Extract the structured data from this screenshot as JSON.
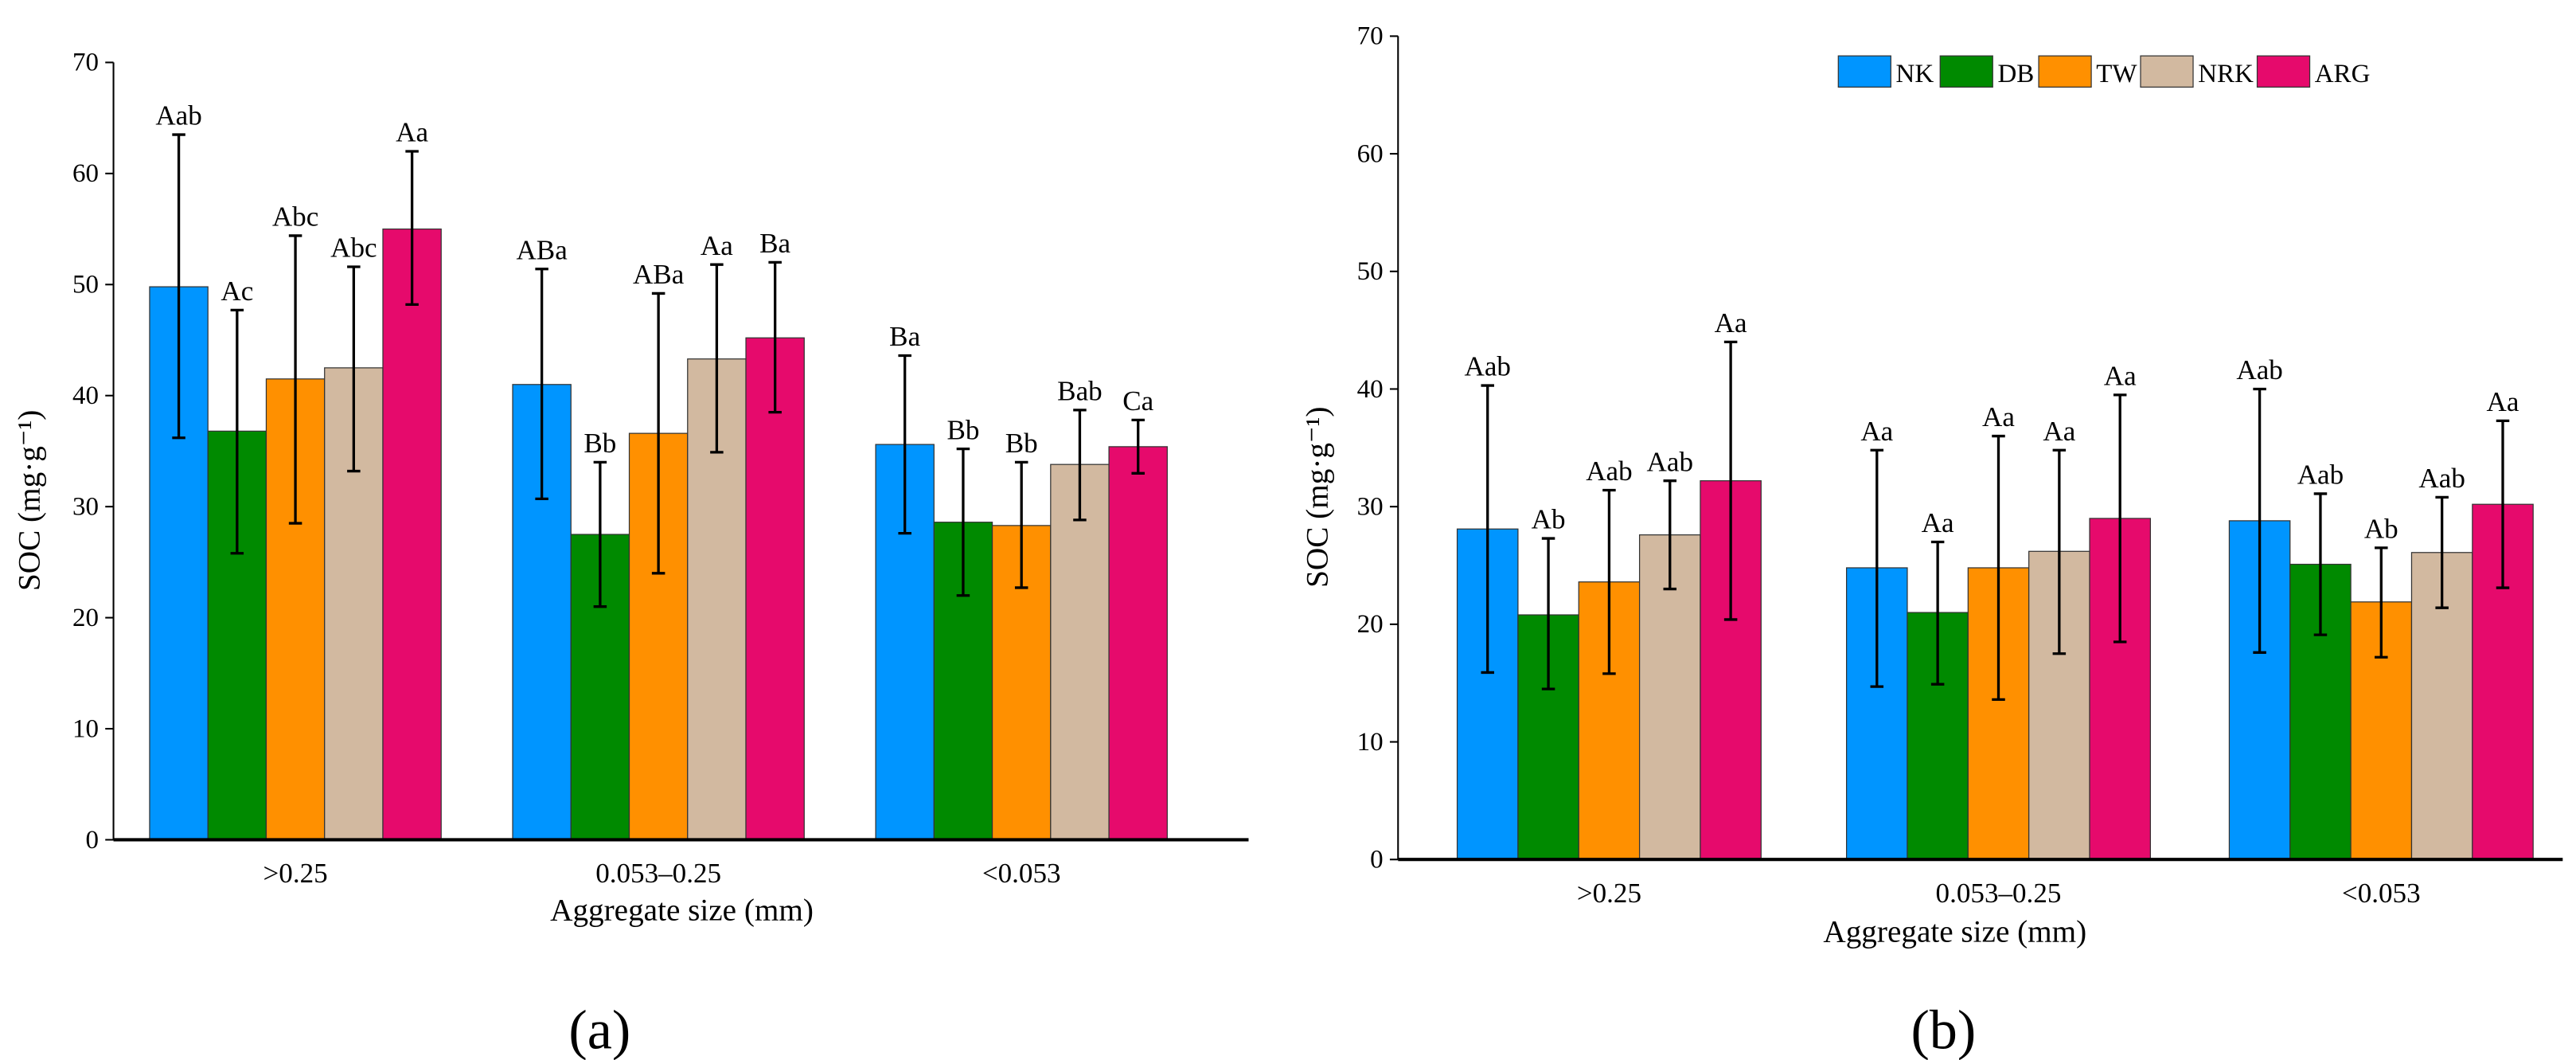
{
  "legend": [
    "NK",
    "DB",
    "TW",
    "NRK",
    "ARG"
  ],
  "colors": [
    "#0095FF",
    "#008A00",
    "#FF9000",
    "#D2B9A0",
    "#E60A6C"
  ],
  "chart_data": [
    {
      "type": "bar",
      "panel_label": "(a)",
      "xlabel": "Aggregate size (mm)",
      "ylabel": "SOC (mg·g⁻¹)",
      "ylim": [
        0,
        70
      ],
      "yticks": [
        "0",
        "10",
        "20",
        "30",
        "40",
        "50",
        "60",
        "70"
      ],
      "categories": [
        ">0.25",
        "0.053–0.25",
        "<0.053"
      ],
      "legend_shown": false,
      "series": [
        {
          "name": "NK",
          "values": [
            49.8,
            41.0,
            35.6
          ],
          "err_low": [
            36.2,
            30.7,
            27.6
          ],
          "err_high": [
            63.5,
            51.4,
            43.6
          ],
          "labels": [
            "Aab",
            "ABa",
            "Ba"
          ]
        },
        {
          "name": "DB",
          "values": [
            36.8,
            27.5,
            28.6
          ],
          "err_low": [
            25.8,
            21.0,
            22.0
          ],
          "err_high": [
            47.7,
            34.0,
            35.2
          ],
          "labels": [
            "Ac",
            "Bb",
            "Bb"
          ]
        },
        {
          "name": "TW",
          "values": [
            41.5,
            36.6,
            28.3
          ],
          "err_low": [
            28.5,
            24.0,
            22.7
          ],
          "err_high": [
            54.4,
            49.2,
            34.0
          ],
          "labels": [
            "Abc",
            "ABa",
            "Bb"
          ]
        },
        {
          "name": "NRK",
          "values": [
            42.5,
            43.3,
            33.8
          ],
          "err_low": [
            33.2,
            34.9,
            28.8
          ],
          "err_high": [
            51.6,
            51.8,
            38.7
          ],
          "labels": [
            "Abc",
            "Aa",
            "Bab"
          ]
        },
        {
          "name": "ARG",
          "values": [
            55.0,
            45.2,
            35.4
          ],
          "err_low": [
            48.2,
            38.5,
            33.0
          ],
          "err_high": [
            62.0,
            52.0,
            37.8
          ],
          "labels": [
            "Aa",
            "Ba",
            "Ca"
          ]
        }
      ]
    },
    {
      "type": "bar",
      "panel_label": "(b)",
      "xlabel": "Aggregate size (mm)",
      "ylabel": "SOC (mg·g⁻¹)",
      "ylim": [
        0,
        70
      ],
      "yticks": [
        "0",
        "10",
        "20",
        "30",
        "40",
        "50",
        "60",
        "70"
      ],
      "categories": [
        ">0.25",
        "0.053–0.25",
        "<0.053"
      ],
      "legend_shown": true,
      "legend_position": "top-right",
      "series": [
        {
          "name": "NK",
          "values": [
            28.1,
            24.8,
            28.8
          ],
          "err_low": [
            15.9,
            14.7,
            17.6
          ],
          "err_high": [
            40.3,
            34.8,
            40.0
          ],
          "labels": [
            "Aab",
            "Aa",
            "Aab"
          ]
        },
        {
          "name": "DB",
          "values": [
            20.8,
            21.0,
            25.1
          ],
          "err_low": [
            14.5,
            14.9,
            19.1
          ],
          "err_high": [
            27.3,
            27.0,
            31.1
          ],
          "labels": [
            "Ab",
            "Aa",
            "Aab"
          ]
        },
        {
          "name": "TW",
          "values": [
            23.6,
            24.8,
            21.9
          ],
          "err_low": [
            15.8,
            13.6,
            17.2
          ],
          "err_high": [
            31.4,
            36.0,
            26.5
          ],
          "labels": [
            "Aab",
            "Aa",
            "Ab"
          ]
        },
        {
          "name": "NRK",
          "values": [
            27.6,
            26.2,
            26.1
          ],
          "err_low": [
            23.0,
            17.5,
            21.4
          ],
          "err_high": [
            32.2,
            34.8,
            30.8
          ],
          "labels": [
            "Aab",
            "Aa",
            "Aab"
          ]
        },
        {
          "name": "ARG",
          "values": [
            32.2,
            29.0,
            30.2
          ],
          "err_low": [
            20.4,
            18.5,
            23.1
          ],
          "err_high": [
            44.0,
            39.5,
            37.3
          ],
          "labels": [
            "Aa",
            "Aa",
            "Aa"
          ]
        }
      ]
    }
  ]
}
